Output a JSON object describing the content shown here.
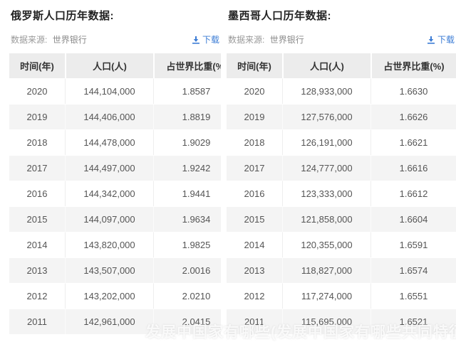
{
  "page": {
    "watermark": "发展中国家有哪些(发展中国家有哪些共同特征)"
  },
  "colors": {
    "accent_blue": "#3b7cd5",
    "title_text": "#222222",
    "header_bg": "#ececec",
    "row_alt_bg": "#f4f4f4",
    "source_text": "#999999"
  },
  "icons": {
    "download": "download-icon"
  },
  "tables": [
    {
      "title": "俄罗斯人口历年数据:",
      "source_label": "数据来源:",
      "source_value": "世界银行",
      "download_label": "下载",
      "columns": [
        "时间(年)",
        "人口(人)",
        "占世界比重(%)"
      ],
      "rows": [
        [
          "2020",
          "144,104,000",
          "1.8587"
        ],
        [
          "2019",
          "144,406,000",
          "1.8819"
        ],
        [
          "2018",
          "144,478,000",
          "1.9029"
        ],
        [
          "2017",
          "144,497,000",
          "1.9242"
        ],
        [
          "2016",
          "144,342,000",
          "1.9441"
        ],
        [
          "2015",
          "144,097,000",
          "1.9634"
        ],
        [
          "2014",
          "143,820,000",
          "1.9825"
        ],
        [
          "2013",
          "143,507,000",
          "2.0016"
        ],
        [
          "2012",
          "143,202,000",
          "2.0210"
        ],
        [
          "2011",
          "142,961,000",
          "2.0415"
        ]
      ]
    },
    {
      "title": "墨西哥人口历年数据:",
      "source_label": "数据来源:",
      "source_value": "世界银行",
      "download_label": "下载",
      "columns": [
        "时间(年)",
        "人口(人)",
        "占世界比重(%)"
      ],
      "rows": [
        [
          "2020",
          "128,933,000",
          "1.6630"
        ],
        [
          "2019",
          "127,576,000",
          "1.6626"
        ],
        [
          "2018",
          "126,191,000",
          "1.6621"
        ],
        [
          "2017",
          "124,777,000",
          "1.6616"
        ],
        [
          "2016",
          "123,333,000",
          "1.6612"
        ],
        [
          "2015",
          "121,858,000",
          "1.6604"
        ],
        [
          "2014",
          "120,355,000",
          "1.6591"
        ],
        [
          "2013",
          "118,827,000",
          "1.6574"
        ],
        [
          "2012",
          "117,274,000",
          "1.6551"
        ],
        [
          "2011",
          "115,695,000",
          "1.6521"
        ]
      ]
    }
  ]
}
